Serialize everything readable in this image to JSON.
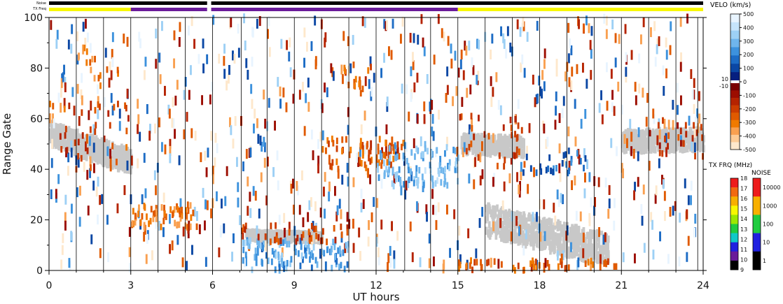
{
  "chart_data": {
    "type": "heatmap",
    "top_bars": {
      "noise_label": "Noise",
      "txfreq_label": "TX Freq",
      "noise_gap_x": [
        5.8,
        5.95
      ],
      "txfreq_segments": [
        {
          "x0": 0,
          "x1": 3,
          "color": "#f8f800"
        },
        {
          "x0": 3,
          "x1": 5.8,
          "color": "#6a1b9a"
        },
        {
          "x0": 5.95,
          "x1": 15,
          "color": "#6a1b9a"
        },
        {
          "x0": 15,
          "x1": 24,
          "color": "#f8f800"
        }
      ]
    },
    "xlabel": "UT hours",
    "ylabel": "Range Gate",
    "xlim": [
      0,
      24
    ],
    "ylim": [
      0,
      100
    ],
    "xticks": [
      "0",
      "3",
      "6",
      "9",
      "12",
      "15",
      "18",
      "21",
      "24"
    ],
    "yticks": [
      "0",
      "20",
      "40",
      "60",
      "80",
      "100"
    ],
    "scan_lines_x": [
      1.0,
      2.0,
      3.0,
      4.0,
      5.0,
      6.0,
      7.05,
      8.0,
      9.0,
      10.0,
      11.0,
      12.0,
      13.05,
      14.0,
      15.0,
      16.0,
      17.0,
      18.0,
      19.0,
      20.0,
      21.0,
      22.0,
      23.0,
      23.8
    ],
    "ground_scatter": [
      {
        "x0": 0.0,
        "x1": 3.0,
        "y0": 54,
        "y1": 43,
        "w": 9
      },
      {
        "x0": 15.1,
        "x1": 17.4,
        "y0": 50,
        "y1": 49,
        "w": 7
      },
      {
        "x0": 21.0,
        "x1": 24.0,
        "y0": 51,
        "y1": 52,
        "w": 8
      },
      {
        "x0": 16.0,
        "x1": 20.5,
        "y0": 20,
        "y1": 8,
        "w": 12
      },
      {
        "x0": 7.2,
        "x1": 10.0,
        "y0": 14,
        "y1": 13,
        "w": 3
      }
    ],
    "velocity_regions": [
      {
        "x0": 3.0,
        "x1": 5.5,
        "y0": 17,
        "y1": 26,
        "v": -300,
        "d": 0.7
      },
      {
        "x0": 7.0,
        "x1": 11.0,
        "y0": 0,
        "y1": 12,
        "v": 250,
        "d": 0.55
      },
      {
        "x0": 7.0,
        "x1": 11.0,
        "y0": 11,
        "y1": 18,
        "v": -200,
        "d": 0.35
      },
      {
        "x0": 10.0,
        "x1": 13.0,
        "y0": 40,
        "y1": 52,
        "v": -250,
        "d": 0.45
      },
      {
        "x0": 12.0,
        "x1": 15.0,
        "y0": 33,
        "y1": 50,
        "v": 300,
        "d": 0.5
      },
      {
        "x0": 15.0,
        "x1": 21.0,
        "y0": 0,
        "y1": 4,
        "v": -250,
        "d": 0.5
      },
      {
        "x0": 0.0,
        "x1": 3.0,
        "y0": 40,
        "y1": 66,
        "v": -200,
        "d": 0.12
      },
      {
        "x0": 10.8,
        "x1": 11.8,
        "y0": 70,
        "y1": 82,
        "v": -250,
        "d": 0.25
      },
      {
        "x0": 1.0,
        "x1": 2.5,
        "y0": 70,
        "y1": 88,
        "v": -300,
        "d": 0.15
      },
      {
        "x0": 15.0,
        "x1": 17.5,
        "y0": 40,
        "y1": 62,
        "v": -200,
        "d": 0.15
      },
      {
        "x0": 17.3,
        "x1": 19.8,
        "y0": 38,
        "y1": 48,
        "v": 150,
        "d": 0.25
      },
      {
        "x0": 22.0,
        "x1": 24.0,
        "y0": 45,
        "y1": 60,
        "v": -150,
        "d": 0.2
      }
    ],
    "velo_colorbar": {
      "title": "VELO (km/s)",
      "ticks_pos": [
        "500",
        "400",
        "300",
        "200",
        "100",
        "0"
      ],
      "ticks_neg": [
        "-100",
        "-200",
        "-300",
        "-400",
        "-500"
      ],
      "side_labels": [
        "10",
        "-10"
      ],
      "colors_pos": [
        "#e8f4ff",
        "#c6e4fb",
        "#9dd0f5",
        "#6fb5ec",
        "#3d92dd",
        "#1d6cc5",
        "#0b47a4",
        "#061f7f"
      ],
      "colors_neg": [
        "#7a0000",
        "#9c0d00",
        "#b52300",
        "#cc3d00",
        "#e05a00",
        "#f07a00",
        "#f9a050",
        "#fdcb96",
        "#fee8cc"
      ]
    },
    "txfrq_colorbar": {
      "title": "TX FRQ (MHz)",
      "ticks": [
        "18",
        "17",
        "16",
        "15",
        "14",
        "13",
        "12",
        "11",
        "10",
        "9"
      ],
      "colors": [
        "#ee1c1c",
        "#f26a10",
        "#f7b000",
        "#f8f800",
        "#9ce800",
        "#20cc40",
        "#10c8c8",
        "#2020e0",
        "#6a1b9a",
        "#000000"
      ]
    },
    "noise_colorbar": {
      "title": "NOISE",
      "ticks": [
        "10000",
        "1000",
        "100",
        "10",
        "1"
      ],
      "colors": [
        "#ee1c1c",
        "#f8b000",
        "#20cc40",
        "#2020e0",
        "#000000"
      ]
    }
  }
}
